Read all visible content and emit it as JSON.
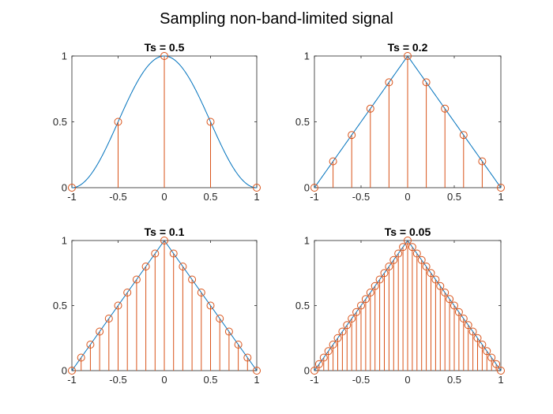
{
  "figure": {
    "title": "Sampling non-band-limited signal",
    "colors": {
      "curve": "#0072bd",
      "samples": "#d95319",
      "axes": "#262626",
      "background": "#ffffff"
    }
  },
  "chart_data": [
    {
      "type": "line",
      "title": "Ts = 0.5",
      "xlim": [
        -1,
        1
      ],
      "ylim": [
        0,
        1
      ],
      "xticks": [
        "-1",
        "-0.5",
        "0",
        "0.5",
        "1"
      ],
      "yticks": [
        "0",
        "0.5",
        "1"
      ],
      "series": [
        {
          "kind": "curve",
          "function": "(1 + cos(pi*x)) / 2"
        },
        {
          "kind": "stem",
          "x": [
            -1,
            -0.5,
            0,
            0.5,
            1
          ],
          "y": [
            0,
            0.5,
            1,
            0.5,
            0
          ]
        }
      ]
    },
    {
      "type": "line",
      "title": "Ts = 0.2",
      "xlim": [
        -1,
        1
      ],
      "ylim": [
        0,
        1
      ],
      "xticks": [
        "-1",
        "-0.5",
        "0",
        "0.5",
        "1"
      ],
      "yticks": [
        "0",
        "0.5",
        "1"
      ],
      "series": [
        {
          "kind": "curve",
          "function": "1 - |x|"
        },
        {
          "kind": "stem",
          "x": [
            -1,
            -0.8,
            -0.6,
            -0.4,
            -0.2,
            0,
            0.2,
            0.4,
            0.6,
            0.8,
            1
          ],
          "y": [
            0,
            0.2,
            0.4,
            0.6,
            0.8,
            1,
            0.8,
            0.6,
            0.4,
            0.2,
            0
          ]
        }
      ]
    },
    {
      "type": "line",
      "title": "Ts = 0.1",
      "xlim": [
        -1,
        1
      ],
      "ylim": [
        0,
        1
      ],
      "xticks": [
        "-1",
        "-0.5",
        "0",
        "0.5",
        "1"
      ],
      "yticks": [
        "0",
        "0.5",
        "1"
      ],
      "series": [
        {
          "kind": "curve",
          "function": "1 - |x|"
        },
        {
          "kind": "stem",
          "x": [
            -1,
            -0.9,
            -0.8,
            -0.7,
            -0.6,
            -0.5,
            -0.4,
            -0.3,
            -0.2,
            -0.1,
            0,
            0.1,
            0.2,
            0.3,
            0.4,
            0.5,
            0.6,
            0.7,
            0.8,
            0.9,
            1
          ],
          "y": [
            0,
            0.1,
            0.2,
            0.3,
            0.4,
            0.5,
            0.6,
            0.7,
            0.8,
            0.9,
            1,
            0.9,
            0.8,
            0.7,
            0.6,
            0.5,
            0.4,
            0.3,
            0.2,
            0.1,
            0
          ]
        }
      ]
    },
    {
      "type": "line",
      "title": "Ts = 0.05",
      "xlim": [
        -1,
        1
      ],
      "ylim": [
        0,
        1
      ],
      "xticks": [
        "-1",
        "-0.5",
        "0",
        "0.5",
        "1"
      ],
      "yticks": [
        "0",
        "0.5",
        "1"
      ],
      "series": [
        {
          "kind": "curve",
          "function": "1 - |x|"
        },
        {
          "kind": "stem",
          "x": [
            -1,
            -0.95,
            -0.9,
            -0.85,
            -0.8,
            -0.75,
            -0.7,
            -0.65,
            -0.6,
            -0.55,
            -0.5,
            -0.45,
            -0.4,
            -0.35,
            -0.3,
            -0.25,
            -0.2,
            -0.15,
            -0.1,
            -0.05,
            0,
            0.05,
            0.1,
            0.15,
            0.2,
            0.25,
            0.3,
            0.35,
            0.4,
            0.45,
            0.5,
            0.55,
            0.6,
            0.65,
            0.7,
            0.75,
            0.8,
            0.85,
            0.9,
            0.95,
            1
          ],
          "y": [
            0,
            0.05,
            0.1,
            0.15,
            0.2,
            0.25,
            0.3,
            0.35,
            0.4,
            0.45,
            0.5,
            0.55,
            0.6,
            0.65,
            0.7,
            0.75,
            0.8,
            0.85,
            0.9,
            0.95,
            1,
            0.95,
            0.9,
            0.85,
            0.8,
            0.75,
            0.7,
            0.65,
            0.6,
            0.55,
            0.5,
            0.45,
            0.4,
            0.35,
            0.3,
            0.25,
            0.2,
            0.15,
            0.1,
            0.05,
            0
          ]
        }
      ]
    }
  ]
}
